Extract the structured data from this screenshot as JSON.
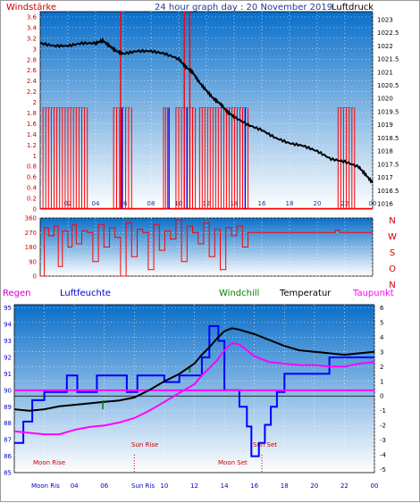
{
  "header": {
    "wind_label": "Windstärke",
    "title": "24 hour graph day : 20 November 2019",
    "pressure_label": "Luftdruck"
  },
  "direction_labels": [
    "N",
    "W",
    "S",
    "O",
    "N"
  ],
  "legend": {
    "regen": "Regen",
    "luftfeuchte": "Luftfeuchte",
    "windchill": "Windchill",
    "temperatur": "Temperatur",
    "taupunkt": "Taupunkt"
  },
  "astro": {
    "moon_rise": "Moon Rise",
    "sun_rise": "Sun Rise",
    "sun_set": "Sun Set",
    "moon_set": "Moon Set",
    "moon_rise_axis": "Moon Ris",
    "sun_rise_axis": "Sun Ris"
  },
  "colors": {
    "plot_top": "#0a6fc9",
    "plot_bottom": "#ffffff",
    "wind": "#ff0000",
    "wind_blue": "#0000ff",
    "pressure": "#000000",
    "temperature": "#000000",
    "dewpoint": "#ff00ff",
    "windchill": "#008000",
    "humidity": "#0000ff",
    "astro": "#cc0000"
  },
  "chart_data": [
    {
      "type": "line",
      "name": "wind-pressure",
      "x_ticks": [
        "02",
        "04",
        "06",
        "08",
        "10",
        "12",
        "14",
        "16",
        "18",
        "20",
        "22",
        "00"
      ],
      "x_range": [
        0,
        24
      ],
      "y_left_ticks": [
        "0",
        "0.2",
        "0.4",
        "0.6",
        "0.8",
        "1",
        "1.2",
        "1.4",
        "1.6",
        "1.8",
        "2",
        "2.2",
        "2.4",
        "2.6",
        "2.8",
        "3",
        "3.2",
        "3.4",
        "3.6"
      ],
      "y_left_range": [
        0,
        3.7
      ],
      "y_right_ticks": [
        "1016",
        "1016.5",
        "1017",
        "1017.5",
        "1018",
        "1018.5",
        "1019",
        "1019.5",
        "1020",
        "1020.5",
        "1021",
        "1021.5",
        "1022",
        "1022.5",
        "1023"
      ],
      "y_right_range": [
        1015.8,
        1023.3
      ],
      "pressure": {
        "x": [
          0,
          1,
          2,
          3,
          4,
          4.5,
          5,
          5.5,
          6,
          7,
          8,
          9,
          10,
          10.5,
          11,
          11.5,
          12,
          12.5,
          13,
          13.5,
          14,
          15,
          16,
          17,
          18,
          19,
          20,
          21,
          22,
          23,
          23.5,
          24
        ],
        "y": [
          1022.1,
          1022.0,
          1022.0,
          1022.1,
          1022.1,
          1022.2,
          1022.0,
          1021.8,
          1021.7,
          1021.8,
          1021.8,
          1021.7,
          1021.5,
          1021.2,
          1021.0,
          1020.6,
          1020.3,
          1020.0,
          1019.8,
          1019.5,
          1019.3,
          1019.0,
          1018.8,
          1018.5,
          1018.3,
          1018.2,
          1018.0,
          1017.7,
          1017.6,
          1017.4,
          1017.1,
          1016.8
        ]
      },
      "wind_segments": [
        {
          "x0": 0.2,
          "x1": 3.4,
          "y": 1.9
        },
        {
          "x0": 5.3,
          "x1": 6.6,
          "y": 1.9
        },
        {
          "x0": 8.9,
          "x1": 9.2,
          "y": 1.9
        },
        {
          "x0": 9.8,
          "x1": 11.2,
          "y": 1.9
        },
        {
          "x0": 11.5,
          "x1": 15.0,
          "y": 1.9
        },
        {
          "x0": 21.5,
          "x1": 22.7,
          "y": 1.9
        }
      ],
      "wind_spikes": [
        {
          "x": 5.8,
          "y": 3.7
        },
        {
          "x": 10.4,
          "y": 3.7
        },
        {
          "x": 10.8,
          "y": 3.7
        }
      ],
      "wind_blue_spikes": [
        5.9,
        9.3,
        10.6,
        14.8
      ]
    },
    {
      "type": "line",
      "name": "wind-direction",
      "y_ticks": [
        "0",
        "90",
        "180",
        "270",
        "360"
      ],
      "y_range": [
        0,
        360
      ],
      "x_range": [
        0,
        24
      ],
      "x": [
        0,
        0.3,
        0.6,
        1.0,
        1.3,
        1.6,
        2.0,
        2.3,
        2.6,
        3.0,
        3.4,
        3.8,
        4.2,
        4.6,
        5.0,
        5.4,
        5.8,
        6.2,
        6.6,
        7.0,
        7.4,
        7.8,
        8.2,
        8.6,
        9.0,
        9.4,
        9.8,
        10.2,
        10.6,
        11.0,
        11.4,
        11.8,
        12.2,
        12.6,
        13.0,
        13.4,
        13.8,
        14.2,
        14.6,
        15.0,
        18.0,
        21.0,
        21.3,
        21.6,
        24.0
      ],
      "y": [
        0,
        300,
        250,
        310,
        60,
        280,
        180,
        320,
        200,
        280,
        270,
        90,
        320,
        180,
        300,
        240,
        0,
        330,
        120,
        290,
        270,
        40,
        320,
        160,
        280,
        230,
        350,
        90,
        310,
        270,
        200,
        330,
        120,
        290,
        40,
        300,
        250,
        310,
        180,
        270,
        270,
        270,
        285,
        270,
        270
      ]
    },
    {
      "type": "line",
      "name": "temperature-humidity",
      "x_range": [
        0,
        24
      ],
      "y_left_ticks": [
        "85",
        "86",
        "87",
        "88",
        "89",
        "90",
        "91",
        "92",
        "93",
        "94",
        "95"
      ],
      "y_left_range": [
        85,
        95.2
      ],
      "y_right_ticks": [
        "-5",
        "-4",
        "-3",
        "-2",
        "-1",
        "0",
        "1",
        "2",
        "3",
        "4",
        "5",
        "6"
      ],
      "y_right_range": [
        -5.2,
        6.2
      ],
      "temperature": {
        "x": [
          0,
          1,
          2,
          3,
          4,
          5,
          6,
          7,
          8,
          9,
          10,
          11,
          12,
          12.5,
          13,
          13.5,
          14,
          14.5,
          15,
          16,
          17,
          18,
          19,
          20,
          21,
          22,
          23,
          24
        ],
        "y": [
          -0.9,
          -1.0,
          -0.9,
          -0.7,
          -0.6,
          -0.5,
          -0.4,
          -0.3,
          -0.1,
          0.4,
          1.0,
          1.5,
          2.2,
          2.8,
          3.3,
          3.9,
          4.4,
          4.6,
          4.5,
          4.2,
          3.8,
          3.4,
          3.1,
          3.0,
          2.9,
          2.8,
          2.9,
          3.0
        ]
      },
      "dewpoint": {
        "x": [
          0,
          1,
          2,
          3,
          4,
          5,
          6,
          7,
          8,
          9,
          10,
          11,
          12,
          12.5,
          13,
          13.5,
          14,
          14.5,
          15,
          16,
          17,
          18,
          19,
          20,
          21,
          22,
          23,
          24
        ],
        "y": [
          -2.4,
          -2.5,
          -2.6,
          -2.6,
          -2.3,
          -2.1,
          -2.0,
          -1.8,
          -1.5,
          -1.0,
          -0.4,
          0.2,
          0.8,
          1.4,
          1.9,
          2.4,
          3.1,
          3.6,
          3.5,
          2.7,
          2.3,
          2.2,
          2.1,
          2.1,
          2.0,
          2.0,
          2.2,
          2.3
        ]
      },
      "humidity": {
        "x": [
          0,
          0.6,
          0.6,
          1.2,
          1.2,
          2.0,
          2.0,
          3.5,
          3.5,
          4.2,
          4.2,
          5.5,
          5.5,
          7.5,
          7.5,
          8.2,
          8.2,
          10.0,
          10.0,
          11.0,
          11.0,
          12.5,
          12.5,
          13.0,
          13.0,
          13.6,
          13.6,
          14.0,
          14.0,
          15.0,
          15.0,
          15.5,
          15.5,
          15.8,
          15.8,
          16.3,
          16.3,
          16.7,
          16.7,
          17.1,
          17.1,
          17.5,
          17.5,
          18.0,
          18.0,
          21.0,
          21.0,
          24.0
        ],
        "y": [
          86.8,
          86.8,
          88.1,
          88.1,
          89.4,
          89.4,
          89.9,
          89.9,
          90.9,
          90.9,
          89.9,
          89.9,
          90.9,
          90.9,
          89.9,
          89.9,
          90.9,
          90.9,
          90.5,
          90.5,
          90.9,
          90.9,
          92.0,
          92.0,
          93.9,
          93.9,
          93.0,
          93.0,
          90.0,
          90.0,
          89.0,
          89.0,
          87.8,
          87.8,
          86.0,
          86.0,
          86.8,
          86.8,
          87.9,
          87.9,
          89.0,
          89.0,
          89.9,
          89.9,
          91.0,
          91.0,
          92.0,
          92.0
        ]
      },
      "humidity_pink": 90.0,
      "windchill_marks": [
        {
          "x": 5.9,
          "y0": -0.3,
          "y1": -0.9
        },
        {
          "x": 11.7,
          "y0": 1.6,
          "y1": 1.9
        }
      ],
      "astro_lines_x": [
        8.0,
        16.5
      ]
    }
  ]
}
